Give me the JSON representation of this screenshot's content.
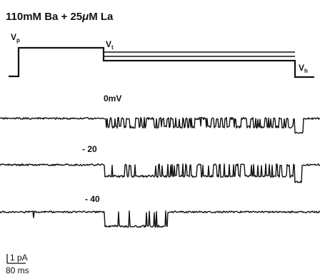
{
  "figure": {
    "title_prefix": "110mM  Ba + 25",
    "title_mu": "μ",
    "title_suffix": "M La",
    "protocol": {
      "vp_main": "V",
      "vp_sub": "p",
      "vt_main": "V",
      "vt_sub": "t",
      "vh_main": "V",
      "vh_sub": "h"
    },
    "traces": [
      {
        "label": "0mV"
      },
      {
        "label": "- 20"
      },
      {
        "label": "- 40"
      }
    ],
    "scale_bar": {
      "current_label": "1 pA",
      "time_label": "80 ms"
    }
  }
}
